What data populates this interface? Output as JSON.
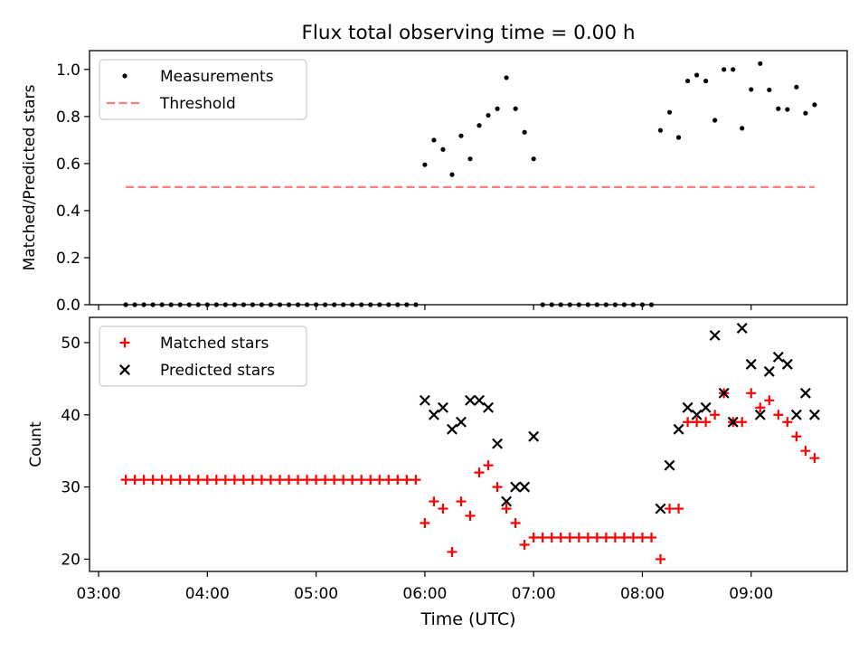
{
  "title": "Flux total observing time = 0.00 h",
  "xlabel": "Time (UTC)",
  "xticks": [
    "03:00",
    "04:00",
    "05:00",
    "06:00",
    "07:00",
    "08:00",
    "09:00"
  ],
  "chart_data": [
    {
      "type": "scatter",
      "ylabel": "Matched/Predicted stars",
      "xlim": [
        "02:55",
        "09:53"
      ],
      "ylim": [
        0,
        1.08
      ],
      "yticks": [
        "0.0",
        "0.2",
        "0.4",
        "0.6",
        "0.8",
        "1.0"
      ],
      "legend_location": "upper-left",
      "series": [
        {
          "name": "Measurements",
          "marker": "dot",
          "color": "#000000",
          "points": [
            [
              "03:15",
              0
            ],
            [
              "03:20",
              0
            ],
            [
              "03:25",
              0
            ],
            [
              "03:30",
              0
            ],
            [
              "03:35",
              0
            ],
            [
              "03:40",
              0
            ],
            [
              "03:45",
              0
            ],
            [
              "03:50",
              0
            ],
            [
              "03:55",
              0
            ],
            [
              "04:00",
              0
            ],
            [
              "04:05",
              0
            ],
            [
              "04:10",
              0
            ],
            [
              "04:15",
              0
            ],
            [
              "04:20",
              0
            ],
            [
              "04:25",
              0
            ],
            [
              "04:30",
              0
            ],
            [
              "04:35",
              0
            ],
            [
              "04:40",
              0
            ],
            [
              "04:45",
              0
            ],
            [
              "04:50",
              0
            ],
            [
              "04:55",
              0
            ],
            [
              "05:00",
              0
            ],
            [
              "05:05",
              0
            ],
            [
              "05:10",
              0
            ],
            [
              "05:15",
              0
            ],
            [
              "05:20",
              0
            ],
            [
              "05:25",
              0
            ],
            [
              "05:30",
              0
            ],
            [
              "05:35",
              0
            ],
            [
              "05:40",
              0
            ],
            [
              "05:45",
              0
            ],
            [
              "05:50",
              0
            ],
            [
              "05:55",
              0
            ],
            [
              "06:00",
              0.595
            ],
            [
              "06:05",
              0.7
            ],
            [
              "06:10",
              0.66
            ],
            [
              "06:15",
              0.553
            ],
            [
              "06:20",
              0.718
            ],
            [
              "06:25",
              0.62
            ],
            [
              "06:30",
              0.762
            ],
            [
              "06:35",
              0.805
            ],
            [
              "06:40",
              0.833
            ],
            [
              "06:45",
              0.965
            ],
            [
              "06:50",
              0.833
            ],
            [
              "06:55",
              0.733
            ],
            [
              "07:00",
              0.62
            ],
            [
              "07:05",
              0
            ],
            [
              "07:10",
              0
            ],
            [
              "07:15",
              0
            ],
            [
              "07:20",
              0
            ],
            [
              "07:25",
              0
            ],
            [
              "07:30",
              0
            ],
            [
              "07:35",
              0
            ],
            [
              "07:40",
              0
            ],
            [
              "07:45",
              0
            ],
            [
              "07:50",
              0
            ],
            [
              "07:55",
              0
            ],
            [
              "08:00",
              0
            ],
            [
              "08:05",
              0
            ],
            [
              "08:10",
              0.741
            ],
            [
              "08:15",
              0.818
            ],
            [
              "08:20",
              0.711
            ],
            [
              "08:25",
              0.951
            ],
            [
              "08:30",
              0.976
            ],
            [
              "08:35",
              0.951
            ],
            [
              "08:40",
              0.784
            ],
            [
              "08:45",
              1.0
            ],
            [
              "08:50",
              1.0
            ],
            [
              "08:55",
              0.75
            ],
            [
              "09:00",
              0.915
            ],
            [
              "09:05",
              1.025
            ],
            [
              "09:10",
              0.913
            ],
            [
              "09:15",
              0.833
            ],
            [
              "09:20",
              0.83
            ],
            [
              "09:25",
              0.925
            ],
            [
              "09:30",
              0.814
            ],
            [
              "09:35",
              0.85
            ]
          ]
        },
        {
          "name": "Threshold",
          "marker": "dashed-line",
          "color": "#ff7f7f",
          "points": [
            [
              "03:15",
              0.5
            ],
            [
              "09:35",
              0.5
            ]
          ]
        }
      ]
    },
    {
      "type": "scatter",
      "ylabel": "Count",
      "xlim": [
        "02:55",
        "09:53"
      ],
      "ylim": [
        18.3,
        53.5
      ],
      "yticks": [
        "20",
        "30",
        "40",
        "50"
      ],
      "legend_location": "upper-left",
      "series": [
        {
          "name": "Matched stars",
          "marker": "plus",
          "color": "#ff0000",
          "points": [
            [
              "03:15",
              31
            ],
            [
              "03:20",
              31
            ],
            [
              "03:25",
              31
            ],
            [
              "03:30",
              31
            ],
            [
              "03:35",
              31
            ],
            [
              "03:40",
              31
            ],
            [
              "03:45",
              31
            ],
            [
              "03:50",
              31
            ],
            [
              "03:55",
              31
            ],
            [
              "04:00",
              31
            ],
            [
              "04:05",
              31
            ],
            [
              "04:10",
              31
            ],
            [
              "04:15",
              31
            ],
            [
              "04:20",
              31
            ],
            [
              "04:25",
              31
            ],
            [
              "04:30",
              31
            ],
            [
              "04:35",
              31
            ],
            [
              "04:40",
              31
            ],
            [
              "04:45",
              31
            ],
            [
              "04:50",
              31
            ],
            [
              "04:55",
              31
            ],
            [
              "05:00",
              31
            ],
            [
              "05:05",
              31
            ],
            [
              "05:10",
              31
            ],
            [
              "05:15",
              31
            ],
            [
              "05:20",
              31
            ],
            [
              "05:25",
              31
            ],
            [
              "05:30",
              31
            ],
            [
              "05:35",
              31
            ],
            [
              "05:40",
              31
            ],
            [
              "05:45",
              31
            ],
            [
              "05:50",
              31
            ],
            [
              "05:55",
              31
            ],
            [
              "06:00",
              25
            ],
            [
              "06:05",
              28
            ],
            [
              "06:10",
              27
            ],
            [
              "06:15",
              21
            ],
            [
              "06:20",
              28
            ],
            [
              "06:25",
              26
            ],
            [
              "06:30",
              32
            ],
            [
              "06:35",
              33
            ],
            [
              "06:40",
              30
            ],
            [
              "06:45",
              27
            ],
            [
              "06:50",
              25
            ],
            [
              "06:55",
              22
            ],
            [
              "07:00",
              23
            ],
            [
              "07:05",
              23
            ],
            [
              "07:10",
              23
            ],
            [
              "07:15",
              23
            ],
            [
              "07:20",
              23
            ],
            [
              "07:25",
              23
            ],
            [
              "07:30",
              23
            ],
            [
              "07:35",
              23
            ],
            [
              "07:40",
              23
            ],
            [
              "07:45",
              23
            ],
            [
              "07:50",
              23
            ],
            [
              "07:55",
              23
            ],
            [
              "08:00",
              23
            ],
            [
              "08:05",
              23
            ],
            [
              "08:10",
              20
            ],
            [
              "08:15",
              27
            ],
            [
              "08:20",
              27
            ],
            [
              "08:25",
              39
            ],
            [
              "08:30",
              39
            ],
            [
              "08:35",
              39
            ],
            [
              "08:40",
              40
            ],
            [
              "08:45",
              43
            ],
            [
              "08:50",
              39
            ],
            [
              "08:55",
              39
            ],
            [
              "09:00",
              43
            ],
            [
              "09:05",
              41
            ],
            [
              "09:10",
              42
            ],
            [
              "09:15",
              40
            ],
            [
              "09:20",
              39
            ],
            [
              "09:25",
              37
            ],
            [
              "09:30",
              35
            ],
            [
              "09:35",
              34
            ]
          ]
        },
        {
          "name": "Predicted stars",
          "marker": "x",
          "color": "#000000",
          "points": [
            [
              "06:00",
              42
            ],
            [
              "06:05",
              40
            ],
            [
              "06:10",
              41
            ],
            [
              "06:15",
              38
            ],
            [
              "06:20",
              39
            ],
            [
              "06:25",
              42
            ],
            [
              "06:30",
              42
            ],
            [
              "06:35",
              41
            ],
            [
              "06:40",
              36
            ],
            [
              "06:45",
              28
            ],
            [
              "06:50",
              30
            ],
            [
              "06:55",
              30
            ],
            [
              "07:00",
              37
            ],
            [
              "08:10",
              27
            ],
            [
              "08:15",
              33
            ],
            [
              "08:20",
              38
            ],
            [
              "08:25",
              41
            ],
            [
              "08:30",
              40
            ],
            [
              "08:35",
              41
            ],
            [
              "08:40",
              51
            ],
            [
              "08:45",
              43
            ],
            [
              "08:50",
              39
            ],
            [
              "08:55",
              52
            ],
            [
              "09:00",
              47
            ],
            [
              "09:05",
              40
            ],
            [
              "09:10",
              46
            ],
            [
              "09:15",
              48
            ],
            [
              "09:20",
              47
            ],
            [
              "09:25",
              40
            ],
            [
              "09:30",
              43
            ],
            [
              "09:35",
              40
            ]
          ]
        }
      ]
    }
  ]
}
